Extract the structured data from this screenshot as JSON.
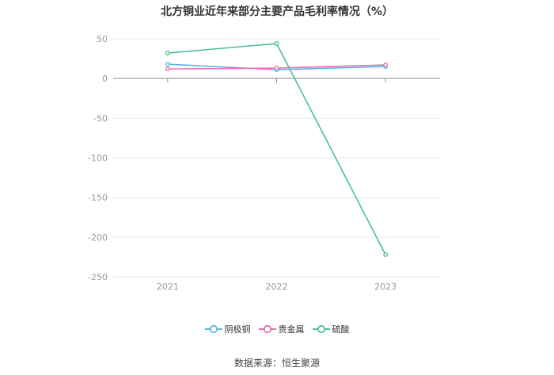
{
  "chart_data": {
    "type": "line",
    "title": "北方铜业近年来部分主要产品毛利率情况（%）",
    "categories": [
      "2021",
      "2022",
      "2023"
    ],
    "yticks": [
      50,
      0,
      -50,
      -100,
      -150,
      -200,
      -250
    ],
    "ylim": [
      -250,
      50
    ],
    "grid": true,
    "legend": "bottom",
    "series": [
      {
        "name": "阴极铜",
        "color": "#5ab4e5",
        "values": [
          18,
          11,
          15
        ]
      },
      {
        "name": "贵金属",
        "color": "#e56fb6",
        "values": [
          12,
          13,
          17
        ]
      },
      {
        "name": "硫酸",
        "color": "#4dbd9f",
        "values": [
          32,
          44,
          -222
        ]
      }
    ]
  },
  "source": "数据来源：恒生聚源"
}
